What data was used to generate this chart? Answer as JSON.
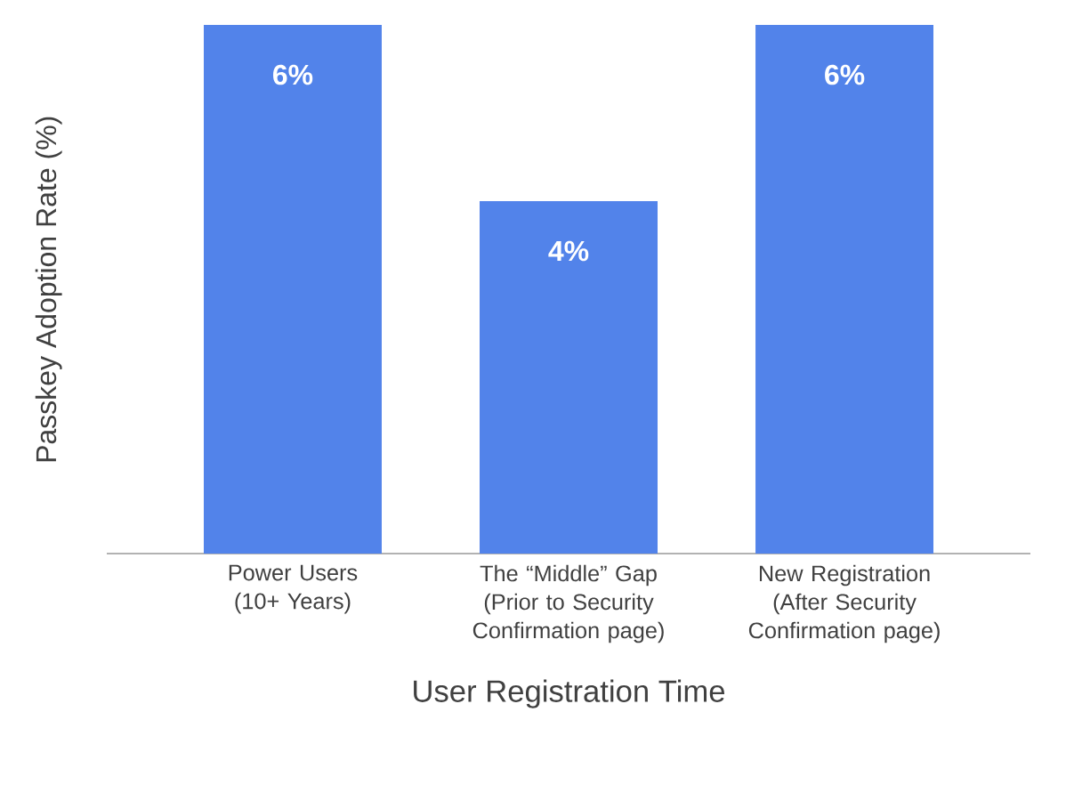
{
  "chart_data": {
    "type": "bar",
    "xlabel": "User Registration Time",
    "ylabel": "Passkey Adoption Rate (%)",
    "categories": [
      "Power Users (10+ Years)",
      "The “Middle” Gap (Prior to Security Confirmation page)",
      "New Registration (After Security Confirmation page)"
    ],
    "values": [
      6,
      4,
      6
    ],
    "value_labels": [
      "6%",
      "4%",
      "6%"
    ],
    "color": "#5283ea"
  }
}
